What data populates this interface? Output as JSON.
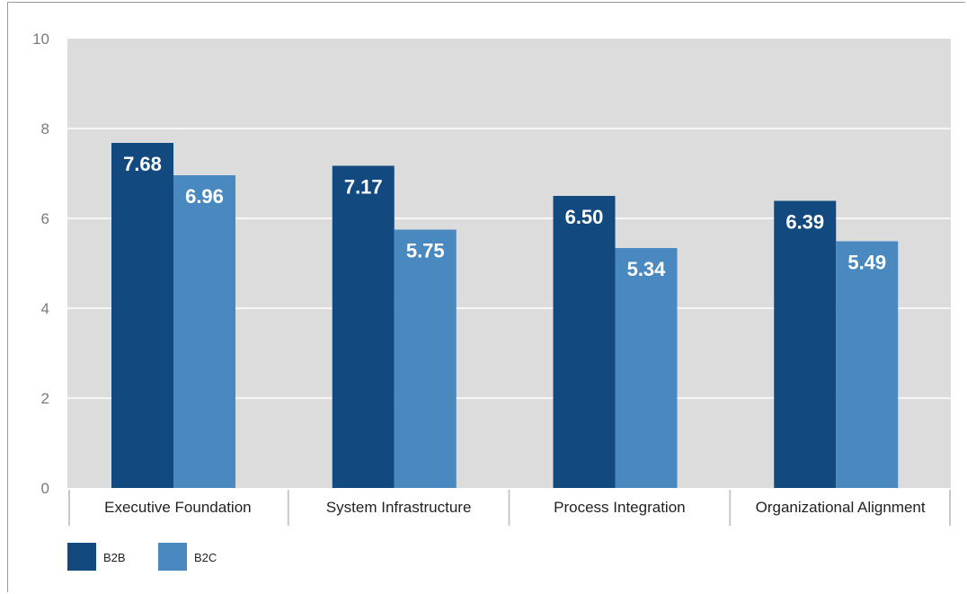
{
  "chart_data": {
    "type": "bar",
    "categories": [
      "Executive Foundation",
      "System Infrastructure",
      "Process Integration",
      "Organizational Alignment"
    ],
    "series": [
      {
        "name": "B2B",
        "values": [
          7.68,
          7.17,
          6.5,
          6.39
        ],
        "labels": [
          "7.68",
          "7.17",
          "6.50",
          "6.39"
        ],
        "color": "#12497e"
      },
      {
        "name": "B2C",
        "values": [
          6.96,
          5.75,
          5.34,
          5.49
        ],
        "labels": [
          "6.96",
          "5.75",
          "5.34",
          "5.49"
        ],
        "color": "#4a89c0"
      }
    ],
    "ylim": [
      0,
      10
    ],
    "yticks": [
      "0",
      "2",
      "4",
      "6",
      "8",
      "10"
    ],
    "ytick_values": [
      0,
      2,
      4,
      6,
      8,
      10
    ],
    "grid": true,
    "plot_background": "#dcdcdd",
    "legend_placement": "bottom-left"
  }
}
